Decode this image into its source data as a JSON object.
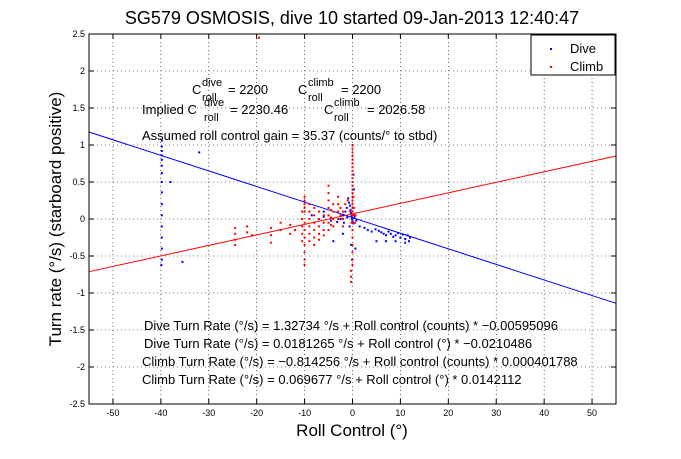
{
  "chart_data": {
    "type": "scatter",
    "title": "SG579 OSMOSIS, dive 10 started 09-Jan-2013 12:40:47",
    "xlabel": "Roll Control (°)",
    "ylabel": "Turn rate (°/s) (starboard positive)",
    "xlim": [
      -55,
      55
    ],
    "ylim": [
      -2.5,
      2.5
    ],
    "xticks": [
      -50,
      -40,
      -30,
      -20,
      -10,
      0,
      10,
      20,
      30,
      40,
      50
    ],
    "yticks": [
      -2.5,
      -2,
      -1.5,
      -1,
      -0.5,
      0,
      0.5,
      1,
      1.5,
      2,
      2.5
    ],
    "grid": true,
    "legend": {
      "position": "top-right",
      "entries": [
        {
          "label": "Dive",
          "color": "#0000ff"
        },
        {
          "label": "Climb",
          "color": "#ff0000"
        }
      ]
    },
    "series": [
      {
        "name": "Dive",
        "color": "#0000ff",
        "points": [
          [
            -39.8,
            1.06
          ],
          [
            -39.8,
            0.98
          ],
          [
            -39.8,
            0.92
          ],
          [
            -39.8,
            0.86
          ],
          [
            -39.8,
            0.8
          ],
          [
            -39.8,
            0.72
          ],
          [
            -39.8,
            0.62
          ],
          [
            -39.8,
            0.5
          ],
          [
            -39.8,
            0.36
          ],
          [
            -39.8,
            0.2
          ],
          [
            -39.8,
            0.05
          ],
          [
            -39.8,
            -0.1
          ],
          [
            -39.8,
            -0.25
          ],
          [
            -39.8,
            -0.4
          ],
          [
            -39.8,
            -0.55
          ],
          [
            -39.9,
            -0.62
          ],
          [
            -38,
            0.5
          ],
          [
            -32,
            0.9
          ],
          [
            -35.5,
            -0.58
          ],
          [
            -0.9,
            0.28
          ],
          [
            -0.7,
            0.22
          ],
          [
            -0.5,
            0.18
          ],
          [
            -0.4,
            0.12
          ],
          [
            -0.3,
            0.08
          ],
          [
            -0.2,
            0.04
          ],
          [
            -0.1,
            0.0
          ],
          [
            0.0,
            -0.03
          ],
          [
            0.2,
            -0.06
          ],
          [
            0.4,
            0.02
          ],
          [
            0.6,
            0.05
          ],
          [
            0.8,
            -0.02
          ],
          [
            -1.2,
            0.15
          ],
          [
            -1.5,
            0.1
          ],
          [
            -2.0,
            0.05
          ],
          [
            -0.6,
            -0.1
          ],
          [
            -1.1,
            0.02
          ],
          [
            -1.8,
            -0.05
          ],
          [
            -2.5,
            0.0
          ],
          [
            -3.2,
            -0.04
          ],
          [
            -4.5,
            -0.02
          ],
          [
            -6.0,
            0.03
          ],
          [
            -8.5,
            0.05
          ],
          [
            1.5,
            -0.1
          ],
          [
            2.5,
            -0.12
          ],
          [
            3.2,
            -0.15
          ],
          [
            4.0,
            -0.17
          ],
          [
            4.8,
            -0.14
          ],
          [
            5.5,
            -0.16
          ],
          [
            6.0,
            -0.18
          ],
          [
            6.5,
            -0.2
          ],
          [
            7.0,
            -0.22
          ],
          [
            7.5,
            -0.17
          ],
          [
            8.0,
            -0.2
          ],
          [
            8.5,
            -0.24
          ],
          [
            9.0,
            -0.22
          ],
          [
            9.5,
            -0.19
          ],
          [
            10.0,
            -0.25
          ],
          [
            10.5,
            -0.21
          ],
          [
            11.0,
            -0.27
          ],
          [
            11.5,
            -0.22
          ],
          [
            12.0,
            -0.25
          ],
          [
            5.0,
            -0.3
          ],
          [
            7.0,
            -0.3
          ],
          [
            9.0,
            -0.3
          ],
          [
            11.0,
            -0.32
          ],
          [
            11.8,
            -0.3
          ],
          [
            -2.0,
            -0.2
          ],
          [
            -4.0,
            -0.3
          ],
          [
            -6.0,
            0.1
          ],
          [
            0.0,
            0.45
          ],
          [
            0.3,
            0.4
          ],
          [
            -0.3,
            -0.35
          ],
          [
            0.6,
            -0.4
          ],
          [
            0.2,
            0.6
          ],
          [
            -0.1,
            -0.55
          ]
        ]
      },
      {
        "name": "Climb",
        "color": "#ff0000",
        "points": [
          [
            -24.5,
            -0.12
          ],
          [
            -24.5,
            -0.2
          ],
          [
            -24.5,
            -0.28
          ],
          [
            -24.5,
            -0.35
          ],
          [
            -22,
            -0.1
          ],
          [
            -22,
            -0.18
          ],
          [
            -21,
            -0.22
          ],
          [
            -19.5,
            2.45
          ],
          [
            -17,
            -0.12
          ],
          [
            -17,
            -0.22
          ],
          [
            -17,
            -0.32
          ],
          [
            -15,
            -0.05
          ],
          [
            -15,
            -0.15
          ],
          [
            -13,
            -0.08
          ],
          [
            -13,
            -0.2
          ],
          [
            -12,
            -0.15
          ],
          [
            -10.5,
            0.1
          ],
          [
            -10.5,
            0.0
          ],
          [
            -10.5,
            -0.1
          ],
          [
            -10.5,
            -0.2
          ],
          [
            -10.5,
            -0.3
          ],
          [
            -10,
            0.3
          ],
          [
            -10,
            0.25
          ],
          [
            -10,
            0.2
          ],
          [
            -10,
            0.15
          ],
          [
            -10,
            0.1
          ],
          [
            -10,
            -0.05
          ],
          [
            -10,
            -0.15
          ],
          [
            -10,
            -0.25
          ],
          [
            -10,
            -0.35
          ],
          [
            -10,
            -0.45
          ],
          [
            -10,
            -0.55
          ],
          [
            -10,
            -0.62
          ],
          [
            -9,
            0.2
          ],
          [
            -9,
            0.1
          ],
          [
            -9,
            0.0
          ],
          [
            -9,
            -0.1
          ],
          [
            -9,
            -0.2
          ],
          [
            -9,
            -0.3
          ],
          [
            -8,
            0.15
          ],
          [
            -8,
            0.05
          ],
          [
            -8,
            -0.05
          ],
          [
            -8,
            -0.15
          ],
          [
            -8,
            -0.25
          ],
          [
            -8,
            -0.35
          ],
          [
            -7,
            0.1
          ],
          [
            -7,
            0.0
          ],
          [
            -7,
            -0.1
          ],
          [
            -7,
            -0.2
          ],
          [
            -7,
            -0.28
          ],
          [
            -6,
            0.05
          ],
          [
            -6,
            -0.05
          ],
          [
            -6,
            -0.15
          ],
          [
            -6,
            -0.22
          ],
          [
            -5,
            0.45
          ],
          [
            -5,
            0.35
          ],
          [
            -5,
            0.25
          ],
          [
            -5,
            0.15
          ],
          [
            -5,
            0.05
          ],
          [
            -5,
            -0.05
          ],
          [
            -5,
            -0.15
          ],
          [
            -4.5,
            0.12
          ],
          [
            -4.5,
            0.02
          ],
          [
            -4.5,
            -0.08
          ],
          [
            -4,
            0.2
          ],
          [
            -4,
            0.1
          ],
          [
            -4,
            0.0
          ],
          [
            -4,
            -0.1
          ],
          [
            -3,
            0.3
          ],
          [
            -3,
            0.2
          ],
          [
            -3,
            0.1
          ],
          [
            -3,
            0.0
          ],
          [
            -2.5,
            0.15
          ],
          [
            -2.5,
            0.05
          ],
          [
            -2,
            0.1
          ],
          [
            -2,
            0.0
          ],
          [
            -2,
            -0.1
          ],
          [
            -1.5,
            0.2
          ],
          [
            -1,
            0.25
          ],
          [
            -0.5,
            0.1
          ],
          [
            -0.2,
            -0.05
          ],
          [
            0,
            1.0
          ],
          [
            0,
            0.95
          ],
          [
            0,
            0.9
          ],
          [
            0,
            0.85
          ],
          [
            0,
            0.8
          ],
          [
            0,
            0.75
          ],
          [
            0,
            0.7
          ],
          [
            0,
            0.65
          ],
          [
            0,
            0.6
          ],
          [
            0,
            0.55
          ],
          [
            0,
            0.5
          ],
          [
            0,
            0.45
          ],
          [
            0,
            0.4
          ],
          [
            0,
            0.35
          ],
          [
            0,
            0.3
          ],
          [
            0,
            0.25
          ],
          [
            0,
            0.2
          ],
          [
            0,
            0.15
          ],
          [
            0,
            0.1
          ],
          [
            0,
            0.05
          ],
          [
            0,
            -0.05
          ],
          [
            0,
            -0.15
          ],
          [
            0,
            -0.25
          ],
          [
            0,
            -0.35
          ],
          [
            0,
            -0.45
          ],
          [
            0,
            -0.55
          ],
          [
            0,
            -0.62
          ],
          [
            0.2,
            0.3
          ],
          [
            0.3,
            0.15
          ],
          [
            0.4,
            0.05
          ],
          [
            0.5,
            -0.05
          ],
          [
            0.6,
            0.05
          ],
          [
            -0.3,
            -0.7
          ],
          [
            -0.3,
            -0.78
          ],
          [
            -0.3,
            -0.85
          ]
        ]
      }
    ],
    "fit_lines": [
      {
        "name": "Dive fit",
        "color": "#0000ff",
        "slope": -0.0210486,
        "intercept": 0.0181265
      },
      {
        "name": "Climb fit",
        "color": "#ff0000",
        "slope": 0.0142112,
        "intercept": 0.069677
      }
    ],
    "annotations": {
      "c_dive_base": "C",
      "c_dive_super": "dive",
      "c_dive_sub": "roll",
      "c_dive_value": "= 2200",
      "c_climb_base": "C",
      "c_climb_super": "climb",
      "c_climb_sub": "roll",
      "c_climb_value": "= 2200",
      "implied_prefix": "Implied C",
      "implied_dive_super": "dive",
      "implied_dive_sub": "roll",
      "implied_dive_value": "= 2230.46",
      "implied_climb_base": "C",
      "implied_climb_super": "climb",
      "implied_climb_sub": "roll",
      "implied_climb_value": "= 2026.58",
      "assumed_gain": "Assumed roll control gain = 35.37 (counts/° to stbd)",
      "dive_fit_counts": "Dive Turn Rate (°/s) = 1.32734 °/s + Roll control (counts) * −0.00595096",
      "dive_fit_deg": "Dive Turn Rate (°/s) = 0.0181265 °/s + Roll control (°) * −0.0210486",
      "climb_fit_counts": "Climb Turn Rate (°/s) = −0.814256 °/s + Roll control (counts) * 0.000401788",
      "climb_fit_deg": "Climb Turn Rate (°/s) = 0.069677 °/s + Roll control (°) * 0.0142112"
    }
  }
}
